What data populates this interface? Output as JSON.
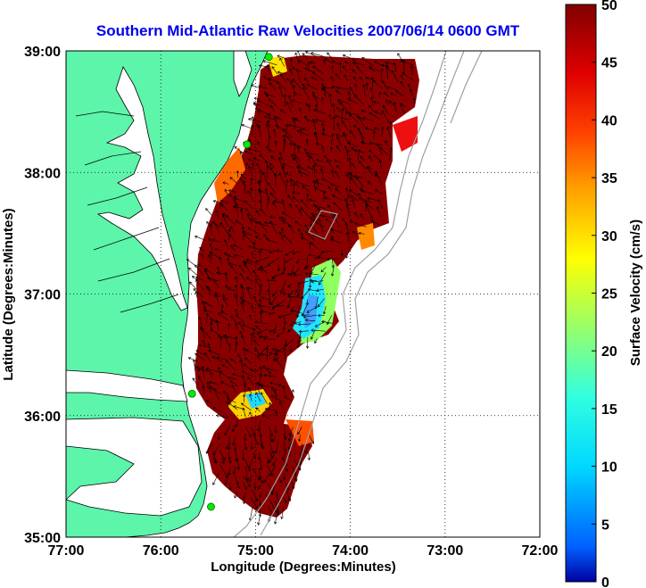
{
  "title": "Southern Mid-Atlantic Raw Velocities 2007/06/14 0600 GMT",
  "xlabel": "Longitude (Degrees:Minutes)",
  "ylabel": "Latitude (Degrees:Minutes)",
  "x_ticks": [
    "77:00",
    "76:00",
    "75:00",
    "74:00",
    "73:00",
    "72:00"
  ],
  "y_ticks": [
    "39:00",
    "38:00",
    "37:00",
    "36:00",
    "35:00"
  ],
  "colorbar": {
    "label": "Surface Velocity (cm/s)",
    "ticks": [
      "0",
      "5",
      "10",
      "15",
      "20",
      "25",
      "30",
      "35",
      "40",
      "45",
      "50"
    ],
    "range": [
      0,
      50
    ]
  },
  "colors": {
    "title": "#0000ee",
    "land": "#5cf5aa",
    "coast": "#000000",
    "bathymetry": "#a0a0a0",
    "grid": "#000000",
    "station": "#00ee00",
    "vectors": "#000000"
  },
  "map": {
    "lon_range": [
      -77,
      -72
    ],
    "lat_range": [
      35,
      39
    ],
    "grid": "dotted",
    "stations": [
      {
        "lon": -74.86,
        "lat": 38.95
      },
      {
        "lon": -75.09,
        "lat": 38.23
      },
      {
        "lon": -75.67,
        "lat": 36.18
      },
      {
        "lon": -75.47,
        "lat": 35.25
      }
    ]
  }
}
